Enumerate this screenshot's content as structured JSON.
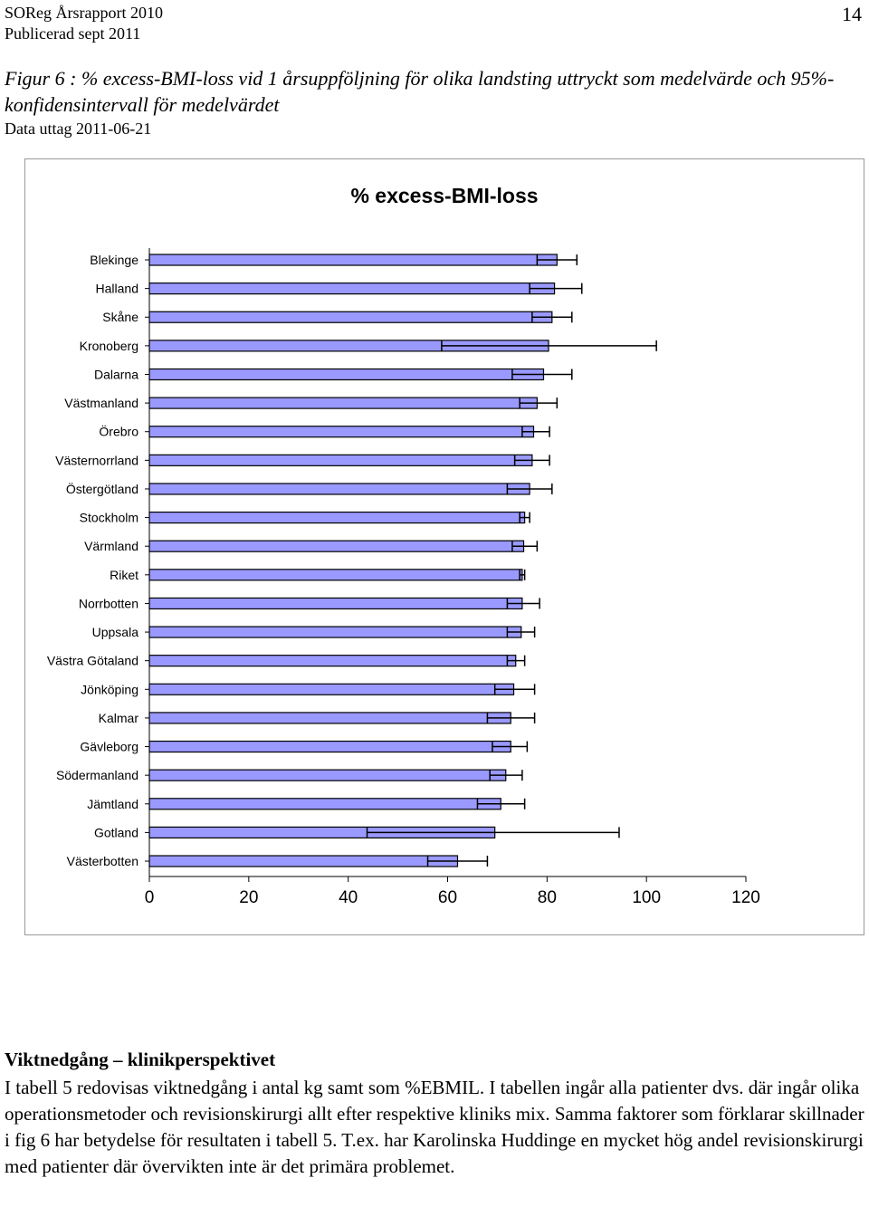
{
  "header": {
    "line1": "SOReg Årsrapport 2010",
    "line2": "Publicerad sept 2011",
    "page_number": "14"
  },
  "figure": {
    "caption": "Figur 6 : % excess-BMI-loss vid 1 årsuppföljning för olika landsting uttryckt som medelvärde och 95%-konfidensintervall för medelvärdet",
    "data_date": "Data uttag 2011-06-21"
  },
  "chart_data": {
    "type": "bar",
    "orientation": "horizontal",
    "title": "% excess-BMI-loss",
    "categories": [
      "Blekinge",
      "Halland",
      "Skåne",
      "Kronoberg",
      "Dalarna",
      "Västmanland",
      "Örebro",
      "Västernorrland",
      "Östergötland",
      "Stockholm",
      "Värmland",
      "Riket",
      "Norrbotten",
      "Uppsala",
      "Västra Götaland",
      "Jönköping",
      "Kalmar",
      "Gävleborg",
      "Södermanland",
      "Jämtland",
      "Gotland",
      "Västerbotten"
    ],
    "values": [
      82.0,
      81.5,
      81.0,
      80.3,
      79.3,
      78.0,
      77.3,
      77.0,
      76.5,
      75.5,
      75.3,
      75.0,
      75.0,
      74.8,
      73.7,
      73.3,
      72.7,
      72.7,
      71.7,
      70.7,
      69.5,
      62.0
    ],
    "ci_lower": [
      78.0,
      76.5,
      77.0,
      58.8,
      73.0,
      74.5,
      75.0,
      73.5,
      72.0,
      74.5,
      73.0,
      74.5,
      72.0,
      72.0,
      72.0,
      69.5,
      68.0,
      69.0,
      68.5,
      66.0,
      43.8,
      56.0
    ],
    "ci_upper": [
      86.0,
      87.0,
      85.0,
      102.0,
      85.0,
      82.0,
      80.5,
      80.5,
      81.0,
      76.5,
      78.0,
      75.5,
      78.5,
      77.5,
      75.5,
      77.5,
      77.5,
      76.0,
      75.0,
      75.5,
      94.5,
      68.0
    ],
    "xlim": [
      0,
      120
    ],
    "xticks": [
      "0",
      "20",
      "40",
      "60",
      "80",
      "100",
      "120"
    ],
    "grid": false,
    "legend": "none",
    "bar_color": "#9999ff",
    "bar_border": "#000000"
  },
  "section": {
    "heading": "Viktnedgång – klinikperspektivet",
    "body": "I tabell 5 redovisas viktnedgång i antal kg samt som %EBMIL. I tabellen ingår alla patienter dvs. där ingår olika operationsmetoder och revisionskirurgi allt efter respektive kliniks mix. Samma faktorer som förklarar skillnader i fig 6 har betydelse för resultaten i tabell 5. T.ex. har Karolinska Huddinge en mycket hög andel revisionskirurgi med patienter där övervikten inte är det primära problemet."
  }
}
